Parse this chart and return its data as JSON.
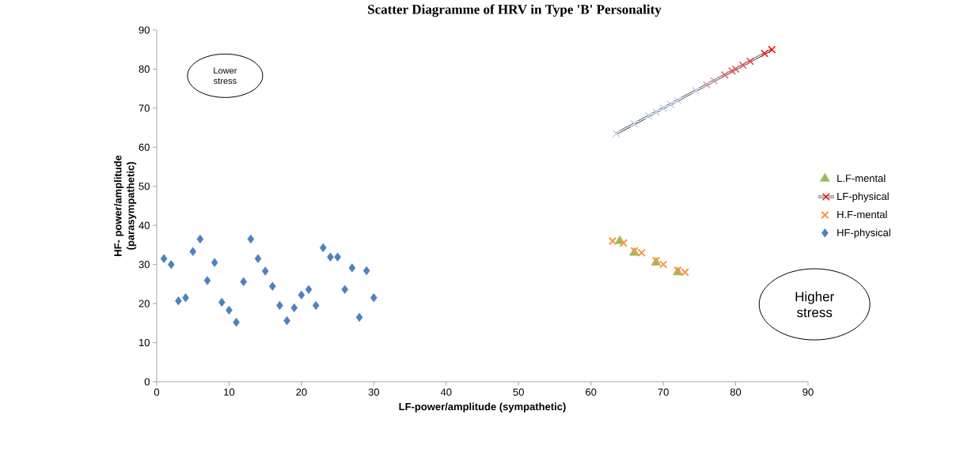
{
  "chart_data": {
    "type": "scatter",
    "title": "Scatter Diagramme of HRV in Type 'B' Personality",
    "xlabel": "LF-power/amplitude (sympathetic)",
    "ylabel": "HF- power/amplitude (parasympathetic)",
    "xlim": [
      0,
      90
    ],
    "ylim": [
      0,
      90
    ],
    "xticks": [
      0,
      10,
      20,
      30,
      40,
      50,
      60,
      70,
      80,
      90
    ],
    "yticks": [
      0,
      10,
      20,
      30,
      40,
      50,
      60,
      70,
      80,
      90
    ],
    "grid": false,
    "legend": "right",
    "annotations": [
      "Lower stress",
      "Higher stress"
    ],
    "series": [
      {
        "name": "L.F-mental",
        "marker": "triangle",
        "color": "#9bbb59",
        "x": [
          64,
          66,
          69,
          72
        ],
        "values": [
          36,
          33,
          30.5,
          28
        ]
      },
      {
        "name": "LF-physical",
        "type": "line",
        "marker": "cross",
        "color": "#000000",
        "x": [
          63.5,
          66,
          68,
          69,
          70,
          71,
          72,
          74.5,
          76,
          77,
          78.5,
          79.5,
          80,
          81,
          82,
          84,
          85
        ],
        "values": [
          63.5,
          66,
          68,
          69,
          70,
          71,
          72,
          74.5,
          76,
          77,
          78.5,
          79.5,
          80,
          81,
          82,
          84,
          85
        ],
        "colors": [
          "#c6d5ee",
          "#c6d5ee",
          "#c6d5ee",
          "#c6d5ee",
          "#c6d5ee",
          "#c6d5ee",
          "#c6d5ee",
          "#c9d4ec",
          "#cfa3b6",
          "#d99aa9",
          "#e0707f",
          "#e56470",
          "#e85e69",
          "#ec5058",
          "#f04048",
          "#f82020",
          "#ff0000"
        ]
      },
      {
        "name": "H.F-mental",
        "marker": "cross",
        "color": "#f79646",
        "x": [
          63,
          64.5,
          66,
          67,
          69,
          70,
          72,
          73
        ],
        "values": [
          36,
          35.5,
          33.5,
          33,
          31,
          30,
          28.5,
          28
        ]
      },
      {
        "name": "HF-physical",
        "marker": "diamond",
        "color": "#4f81bd",
        "x": [
          1,
          2,
          3,
          4,
          5,
          6,
          7,
          8,
          9,
          10,
          11,
          12,
          13,
          14,
          15,
          16,
          17,
          18,
          19,
          20,
          21,
          22,
          23,
          24,
          25,
          26,
          27,
          28,
          29,
          30
        ],
        "values": [
          31.5,
          30,
          20.7,
          21.5,
          33.3,
          36.5,
          25.9,
          30.5,
          20.3,
          18.3,
          15.2,
          25.6,
          36.5,
          31.5,
          28.3,
          24.4,
          19.5,
          15.6,
          18.9,
          22.2,
          23.6,
          19.5,
          34.3,
          31.9,
          31.9,
          23.6,
          29.1,
          16.5,
          28.4,
          21.5
        ]
      }
    ]
  }
}
